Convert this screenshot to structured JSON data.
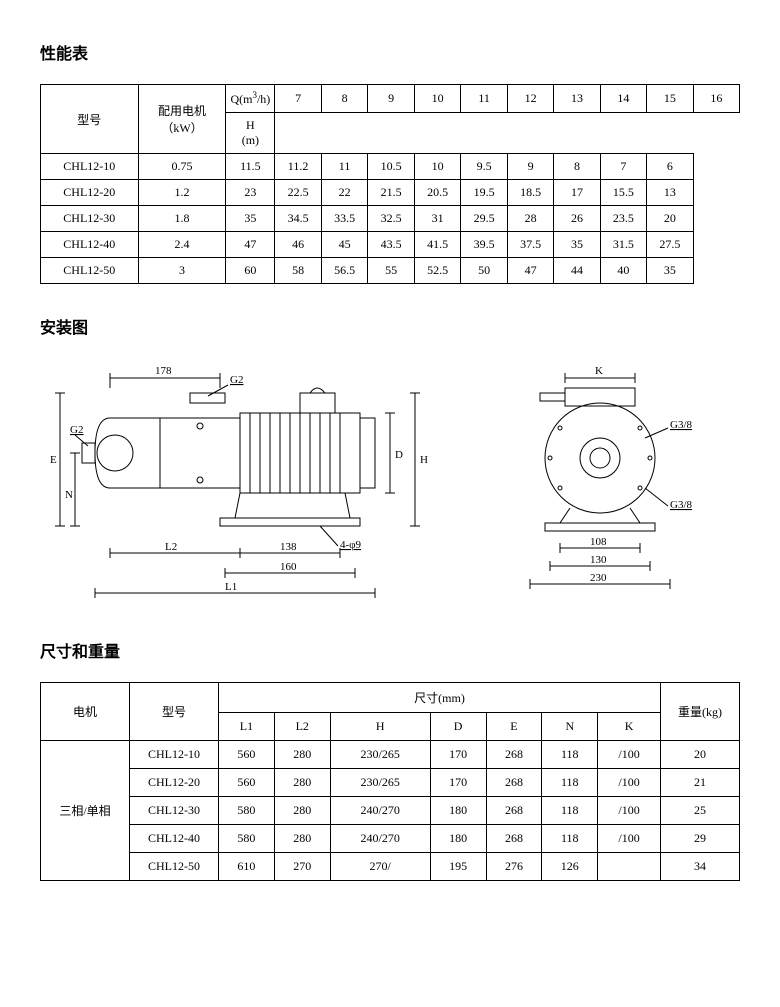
{
  "section1": {
    "title": "性能表",
    "headers": {
      "model": "型号",
      "motor": "配用电机\n（kW）",
      "q": "Q(m³/h)",
      "qvals": [
        "7",
        "8",
        "9",
        "10",
        "11",
        "12",
        "13",
        "14",
        "15",
        "16"
      ],
      "hm": "H\n(m)"
    },
    "rows": [
      {
        "model": "CHL12-10",
        "kw": "0.75",
        "vals": [
          "11.5",
          "11.2",
          "11",
          "10.5",
          "10",
          "9.5",
          "9",
          "8",
          "7",
          "6"
        ]
      },
      {
        "model": "CHL12-20",
        "kw": "1.2",
        "vals": [
          "23",
          "22.5",
          "22",
          "21.5",
          "20.5",
          "19.5",
          "18.5",
          "17",
          "15.5",
          "13"
        ]
      },
      {
        "model": "CHL12-30",
        "kw": "1.8",
        "vals": [
          "35",
          "34.5",
          "33.5",
          "32.5",
          "31",
          "29.5",
          "28",
          "26",
          "23.5",
          "20"
        ]
      },
      {
        "model": "CHL12-40",
        "kw": "2.4",
        "vals": [
          "47",
          "46",
          "45",
          "43.5",
          "41.5",
          "39.5",
          "37.5",
          "35",
          "31.5",
          "27.5"
        ]
      },
      {
        "model": "CHL12-50",
        "kw": "3",
        "vals": [
          "60",
          "58",
          "56.5",
          "55",
          "52.5",
          "50",
          "47",
          "44",
          "40",
          "35"
        ]
      }
    ]
  },
  "section2": {
    "title": "安装图",
    "labels": {
      "g2": "G2",
      "g38": "G3/8",
      "E": "E",
      "N": "N",
      "D": "D",
      "H": "H",
      "K": "K",
      "L1": "L1",
      "L2": "L2",
      "d178": "178",
      "d138": "138",
      "d160": "160",
      "d108": "108",
      "d130": "130",
      "d230": "230",
      "holes": "4-φ9"
    }
  },
  "section3": {
    "title": "尺寸和重量",
    "headers": {
      "motor": "电机",
      "model": "型号",
      "dims": "尺寸(mm)",
      "dimcols": [
        "L1",
        "L2",
        "H",
        "D",
        "E",
        "N",
        "K"
      ],
      "weight": "重量(kg)"
    },
    "motor_label": "三相/单相",
    "rows": [
      {
        "model": "CHL12-10",
        "L1": "560",
        "L2": "280",
        "H": "230/265",
        "D": "170",
        "E": "268",
        "N": "118",
        "K": "/100",
        "wt": "20"
      },
      {
        "model": "CHL12-20",
        "L1": "560",
        "L2": "280",
        "H": "230/265",
        "D": "170",
        "E": "268",
        "N": "118",
        "K": "/100",
        "wt": "21"
      },
      {
        "model": "CHL12-30",
        "L1": "580",
        "L2": "280",
        "H": "240/270",
        "D": "180",
        "E": "268",
        "N": "118",
        "K": "/100",
        "wt": "25"
      },
      {
        "model": "CHL12-40",
        "L1": "580",
        "L2": "280",
        "H": "240/270",
        "D": "180",
        "E": "268",
        "N": "118",
        "K": "/100",
        "wt": "29"
      },
      {
        "model": "CHL12-50",
        "L1": "610",
        "L2": "270",
        "H": "270/",
        "D": "195",
        "E": "276",
        "N": "126",
        "K": "",
        "wt": "34"
      }
    ]
  }
}
